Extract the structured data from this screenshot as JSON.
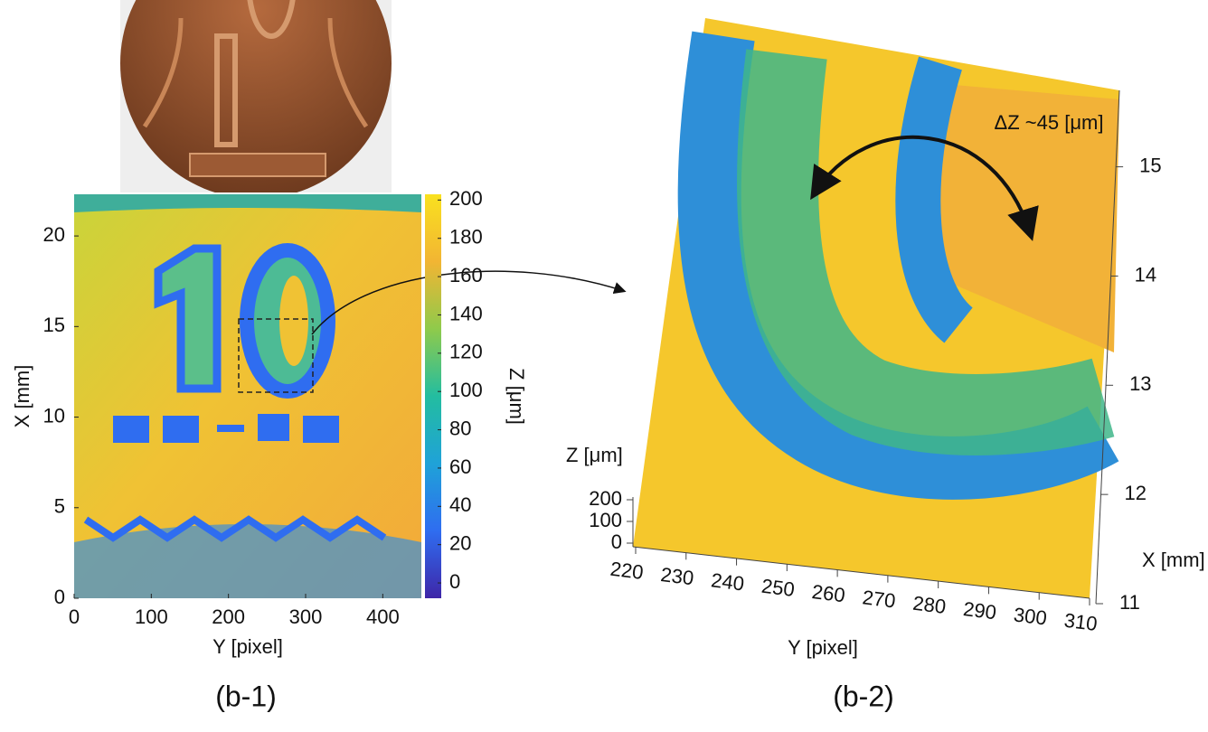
{
  "chart_data": [
    {
      "type": "heatmap",
      "xlabel": "Y [pixel]",
      "ylabel": "X [mm]",
      "xlim": [
        0,
        450
      ],
      "xticks": [
        0,
        100,
        200,
        300,
        400
      ],
      "ylim": [
        0,
        22.3
      ],
      "yticks": [
        0,
        5,
        10,
        15,
        20
      ],
      "colorbar_label": "Z [μm]",
      "colorbar_lim": [
        -8,
        203
      ],
      "colorbar_ticks": [
        0,
        20,
        40,
        60,
        80,
        100,
        120,
        140,
        160,
        180,
        200
      ],
      "colormap": [
        "#3e26a8",
        "#2f6df0",
        "#1fa2d8",
        "#23bda0",
        "#8fca4b",
        "#f2b533",
        "#f9e11f"
      ],
      "caption": "(b-1)"
    },
    {
      "type": "surface3d",
      "xlabel": "Y [pixel]",
      "ylabel": "X [mm]",
      "zlabel": "Z [μm]",
      "xlim": [
        220,
        310
      ],
      "xticks": [
        220,
        230,
        240,
        250,
        260,
        270,
        280,
        290,
        300,
        310
      ],
      "ylim": [
        11,
        15.7
      ],
      "yticks": [
        11,
        12,
        13,
        14,
        15
      ],
      "zlim": [
        0,
        200
      ],
      "zticks": [
        0,
        100,
        200
      ],
      "annotation": "ΔZ ~45 [μm]",
      "caption": "(b-2)"
    }
  ]
}
